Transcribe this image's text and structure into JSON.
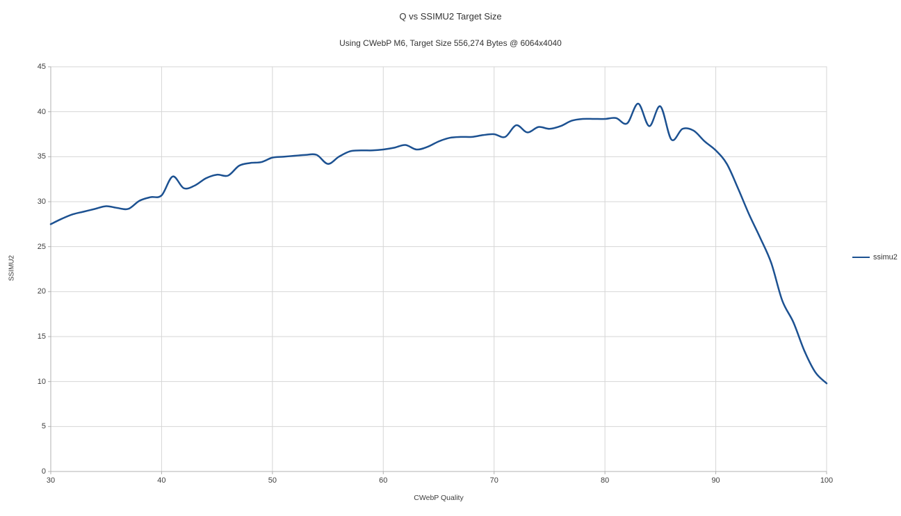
{
  "page": {
    "background": "#ffffff"
  },
  "chart_data": {
    "type": "line",
    "title": "Q vs SSIMU2 Target Size",
    "subtitle": "Using CWebP M6, Target Size 556,274 Bytes @ 6064x4040",
    "xlabel": "CWebP Quality",
    "ylabel": "SSIMU2",
    "xlim": [
      30,
      100
    ],
    "ylim": [
      0,
      45
    ],
    "x_ticks": [
      30,
      40,
      50,
      60,
      70,
      80,
      90,
      100
    ],
    "y_ticks": [
      0,
      5,
      10,
      15,
      20,
      25,
      30,
      35,
      40,
      45
    ],
    "grid": true,
    "grid_color": "#d6d6d6",
    "axis_color": "#b0b0b0",
    "legend": {
      "position": "right",
      "entries": [
        "ssimu2"
      ]
    },
    "series": [
      {
        "name": "ssimu2",
        "color": "#1c5191",
        "x": [
          30,
          31,
          32,
          33,
          34,
          35,
          36,
          37,
          38,
          39,
          40,
          41,
          42,
          43,
          44,
          45,
          46,
          47,
          48,
          49,
          50,
          51,
          52,
          53,
          54,
          55,
          56,
          57,
          58,
          59,
          60,
          61,
          62,
          63,
          64,
          65,
          66,
          67,
          68,
          69,
          70,
          71,
          72,
          73,
          74,
          75,
          76,
          77,
          78,
          79,
          80,
          81,
          82,
          83,
          84,
          85,
          86,
          87,
          88,
          89,
          90,
          91,
          92,
          93,
          94,
          95,
          96,
          97,
          98,
          99,
          100
        ],
        "y": [
          27.5,
          28.1,
          28.6,
          28.9,
          29.2,
          29.5,
          29.3,
          29.2,
          30.1,
          30.5,
          30.7,
          32.8,
          31.5,
          31.8,
          32.6,
          33.0,
          32.9,
          34.0,
          34.3,
          34.4,
          34.9,
          35.0,
          35.1,
          35.2,
          35.2,
          34.2,
          35.0,
          35.6,
          35.7,
          35.7,
          35.8,
          36.0,
          36.3,
          35.8,
          36.1,
          36.7,
          37.1,
          37.2,
          37.2,
          37.4,
          37.5,
          37.2,
          38.5,
          37.7,
          38.3,
          38.1,
          38.4,
          39.0,
          39.2,
          39.2,
          39.2,
          39.3,
          38.7,
          40.9,
          38.4,
          40.6,
          36.9,
          38.1,
          37.9,
          36.7,
          35.7,
          34.2,
          31.5,
          28.6,
          26.0,
          23.2,
          19.0,
          16.6,
          13.4,
          11.0,
          9.8
        ]
      }
    ]
  }
}
